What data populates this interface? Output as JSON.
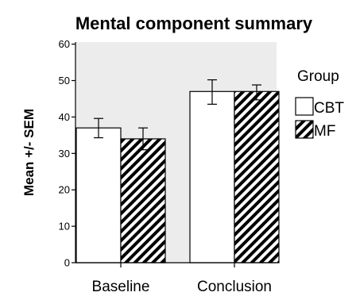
{
  "chart_data": {
    "type": "bar",
    "title": "Mental component summary",
    "ylabel": "Mean +/- SEM",
    "xlabel": "",
    "ylim": [
      0,
      65
    ],
    "yticks": [
      0,
      10,
      20,
      30,
      40,
      50,
      60
    ],
    "categories": [
      "Baseline",
      "Conclusion"
    ],
    "legend_title": "Group",
    "legend_position": "right",
    "plot_background": "#ececec",
    "grid": false,
    "series": [
      {
        "name": "CBT",
        "fill": "plain-white",
        "values": [
          37,
          47
        ],
        "err_low": [
          34.3,
          43.5
        ],
        "err_high": [
          39.6,
          50.2
        ]
      },
      {
        "name": "MF",
        "fill": "diagonal-hatch",
        "values": [
          34,
          47
        ],
        "err_low": [
          31,
          44.7
        ],
        "err_high": [
          37,
          48.8
        ]
      }
    ]
  }
}
